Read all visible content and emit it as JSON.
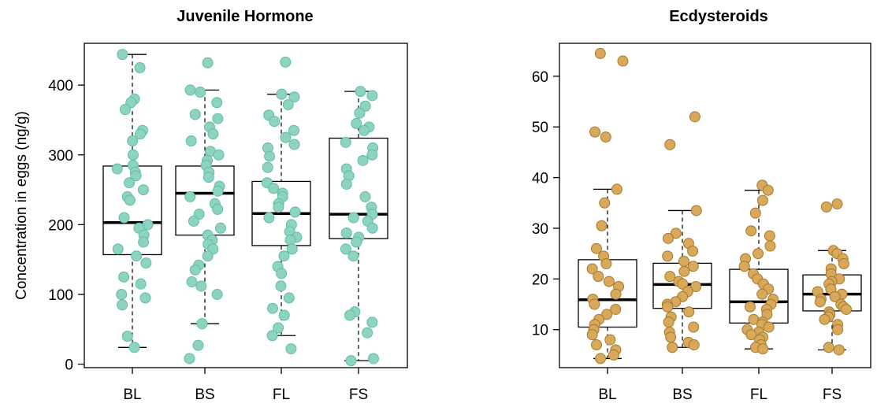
{
  "chart_data": [
    {
      "type": "boxplot",
      "title": "Juvenile Hormone",
      "ylabel": "Concentration in eggs (ng/g)",
      "xlabel": "",
      "ylim": [
        -5,
        460
      ],
      "yticks": [
        0,
        100,
        200,
        300,
        400
      ],
      "categories": [
        "BL",
        "BS",
        "FL",
        "FS"
      ],
      "point_color": "#8ed3c1",
      "point_edge_color": "#5fbfa6",
      "boxes": [
        {
          "category": "BL",
          "whisker_low": 24,
          "q1": 157,
          "median": 203,
          "q3": 284,
          "whisker_high": 444
        },
        {
          "category": "BS",
          "whisker_low": 58,
          "q1": 185,
          "median": 245,
          "q3": 284,
          "whisker_high": 393
        },
        {
          "category": "FL",
          "whisker_low": 41,
          "q1": 170,
          "median": 216,
          "q3": 262,
          "whisker_high": 387
        },
        {
          "category": "FS",
          "whisker_low": 5,
          "q1": 180,
          "median": 215,
          "q3": 324,
          "whisker_high": 391
        }
      ],
      "points": [
        {
          "category": "BL",
          "values": [
            444,
            425,
            380,
            375,
            365,
            335,
            330,
            320,
            300,
            285,
            280,
            275,
            270,
            260,
            250,
            240,
            235,
            210,
            200,
            195,
            185,
            175,
            165,
            155,
            145,
            125,
            115,
            100,
            95,
            85,
            40,
            24
          ]
        },
        {
          "category": "BS",
          "values": [
            432,
            393,
            390,
            375,
            358,
            352,
            340,
            330,
            320,
            305,
            300,
            292,
            285,
            275,
            268,
            255,
            248,
            240,
            230,
            222,
            215,
            205,
            195,
            185,
            178,
            172,
            165,
            155,
            142,
            135,
            118,
            112,
            100,
            58,
            27,
            8
          ]
        },
        {
          "category": "FL",
          "values": [
            433,
            387,
            383,
            372,
            357,
            348,
            335,
            325,
            315,
            310,
            298,
            282,
            260,
            252,
            245,
            240,
            230,
            225,
            218,
            210,
            200,
            190,
            182,
            178,
            165,
            155,
            140,
            130,
            112,
            95,
            80,
            70,
            52,
            41,
            22
          ]
        },
        {
          "category": "FS",
          "values": [
            391,
            385,
            370,
            360,
            345,
            340,
            335,
            318,
            310,
            300,
            292,
            280,
            270,
            258,
            240,
            225,
            215,
            210,
            205,
            195,
            188,
            182,
            175,
            165,
            155,
            75,
            70,
            60,
            45,
            8,
            5
          ]
        }
      ]
    },
    {
      "type": "boxplot",
      "title": "Ecdysteroids",
      "ylabel": "",
      "xlabel": "",
      "ylim": [
        2.5,
        66.5
      ],
      "yticks": [
        10,
        20,
        30,
        40,
        50,
        60
      ],
      "categories": [
        "BL",
        "BS",
        "FL",
        "FS"
      ],
      "point_color": "#d8a95b",
      "point_edge_color": "#a7792c",
      "boxes": [
        {
          "category": "BL",
          "whisker_low": 4.3,
          "q1": 10.5,
          "median": 15.9,
          "q3": 23.8,
          "whisker_high": 37.7
        },
        {
          "category": "BS",
          "whisker_low": 6.5,
          "q1": 14.2,
          "median": 18.9,
          "q3": 23.1,
          "whisker_high": 33.5
        },
        {
          "category": "FL",
          "whisker_low": 6.2,
          "q1": 11.3,
          "median": 15.5,
          "q3": 21.9,
          "whisker_high": 37.5
        },
        {
          "category": "FS",
          "whisker_low": 6.0,
          "q1": 13.7,
          "median": 17.0,
          "q3": 20.8,
          "whisker_high": 25.6
        }
      ],
      "points": [
        {
          "category": "BL",
          "values": [
            64.5,
            63.0,
            49.0,
            48.0,
            37.7,
            35.0,
            30.5,
            26.0,
            24.5,
            23.0,
            22.0,
            20.5,
            19.5,
            18.5,
            17.0,
            16.0,
            15.0,
            14.0,
            13.0,
            12.0,
            11.0,
            10.0,
            9.0,
            8.0,
            7.0,
            6.0,
            5.0,
            4.3
          ]
        },
        {
          "category": "BS",
          "values": [
            52.0,
            46.5,
            33.5,
            29.0,
            28.0,
            27.0,
            25.5,
            24.5,
            23.5,
            22.5,
            21.5,
            20.5,
            19.5,
            19.0,
            18.5,
            17.5,
            16.5,
            15.5,
            15.0,
            14.5,
            13.5,
            12.5,
            11.5,
            10.5,
            9.5,
            8.5,
            7.5,
            7.0,
            6.5
          ]
        },
        {
          "category": "FL",
          "values": [
            38.5,
            37.5,
            35.5,
            33.0,
            29.5,
            28.5,
            26.5,
            25.0,
            24.0,
            22.5,
            21.0,
            20.0,
            19.0,
            18.0,
            17.0,
            16.0,
            15.0,
            14.5,
            14.0,
            13.0,
            12.0,
            11.5,
            11.0,
            10.5,
            10.0,
            9.5,
            9.0,
            8.5,
            8.0,
            7.0,
            6.5,
            6.2
          ]
        },
        {
          "category": "FS",
          "values": [
            34.8,
            34.2,
            25.6,
            25.0,
            24.0,
            23.0,
            22.0,
            21.0,
            20.0,
            19.5,
            19.0,
            18.0,
            17.5,
            17.0,
            16.5,
            16.0,
            15.5,
            15.0,
            14.5,
            14.0,
            13.5,
            13.0,
            12.5,
            12.0,
            11.0,
            10.0,
            6.5,
            6.0
          ]
        }
      ]
    }
  ]
}
